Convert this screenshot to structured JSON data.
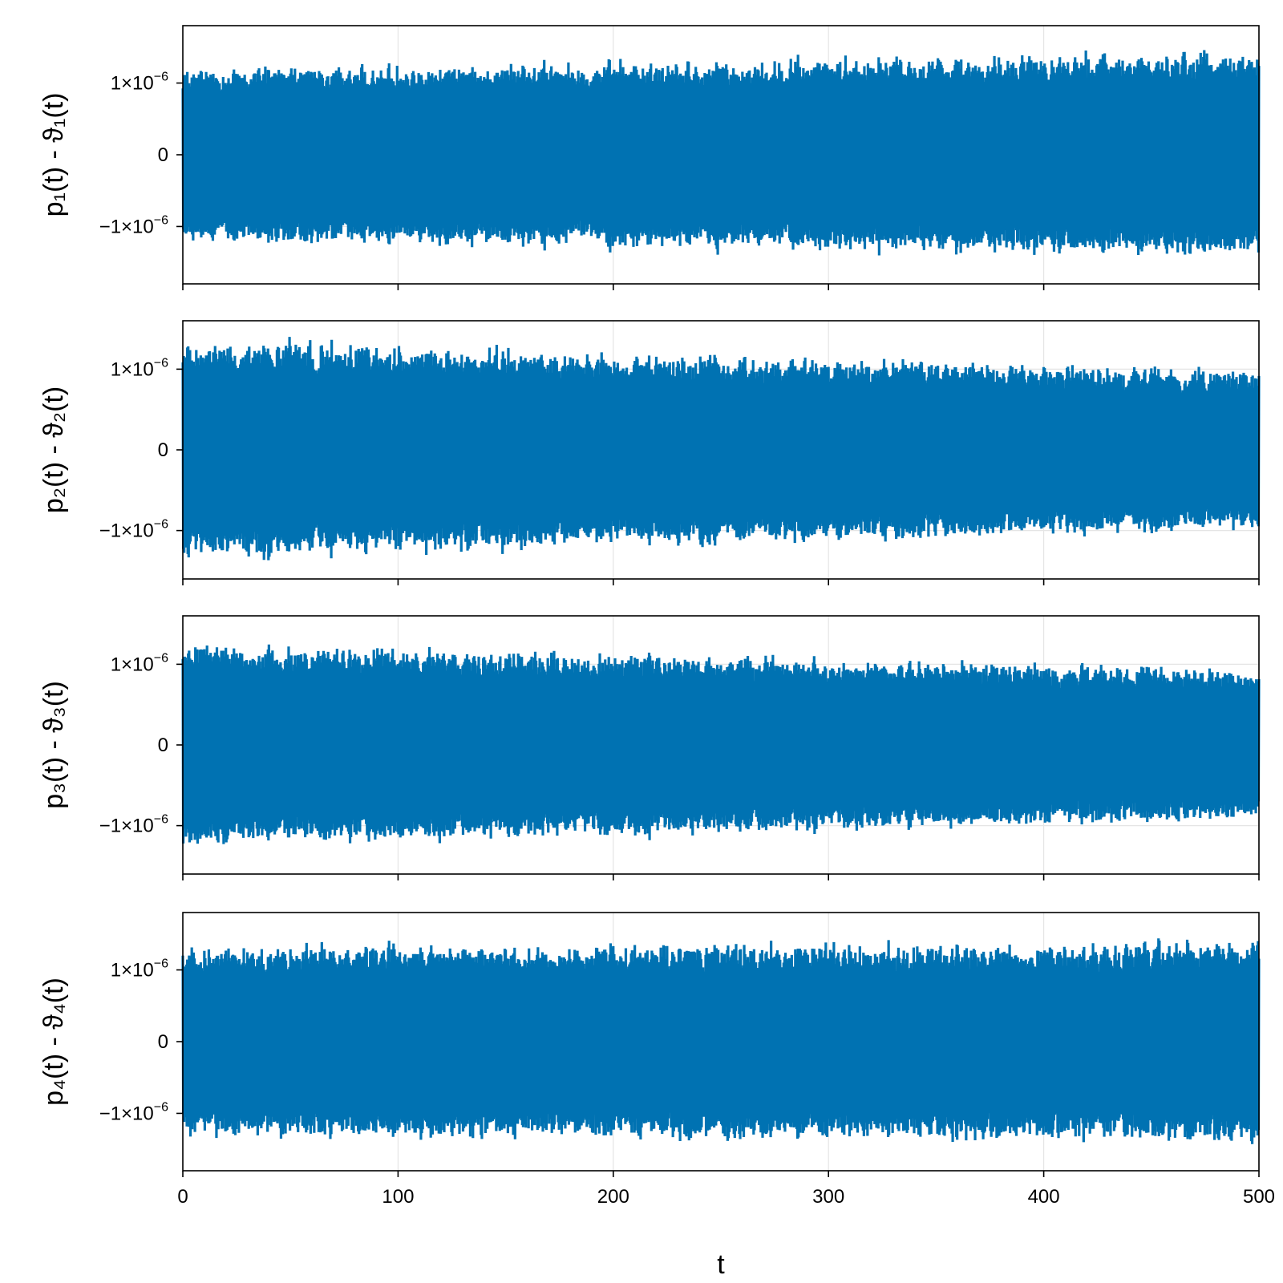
{
  "chart_data": [
    {
      "type": "line",
      "ylabel": "p₁(t) - ϑ₁(t)",
      "xlim": [
        0,
        500
      ],
      "ylim": [
        -1.8e-06,
        1.8e-06
      ],
      "x_ticks": [
        "0",
        "100",
        "200",
        "300",
        "400",
        "500"
      ],
      "y_ticks": [
        {
          "value": 1e-06,
          "base": "1×10",
          "exp": "−6"
        },
        {
          "value": 0,
          "base": "0",
          "exp": ""
        },
        {
          "value": -1e-06,
          "base": "−1×10",
          "exp": "−6"
        }
      ],
      "grid": true,
      "series": [
        {
          "color": "#0072b2",
          "amplitude": 1.5e-06,
          "amplitude_start": 1.35e-06,
          "amplitude_end": 1.6e-06
        }
      ]
    },
    {
      "type": "line",
      "ylabel": "p₂(t) - ϑ₂(t)",
      "xlim": [
        0,
        500
      ],
      "ylim": [
        -1.6e-06,
        1.6e-06
      ],
      "x_ticks": [
        "0",
        "100",
        "200",
        "300",
        "400",
        "500"
      ],
      "y_ticks": [
        {
          "value": 1e-06,
          "base": "1×10",
          "exp": "−6"
        },
        {
          "value": 0,
          "base": "0",
          "exp": ""
        },
        {
          "value": -1e-06,
          "base": "−1×10",
          "exp": "−6"
        }
      ],
      "grid": true,
      "series": [
        {
          "color": "#0072b2",
          "amplitude": 1.3e-06,
          "amplitude_start": 1.5e-06,
          "amplitude_end": 1.1e-06
        }
      ]
    },
    {
      "type": "line",
      "ylabel": "p₃(t) - ϑ₃(t)",
      "xlim": [
        0,
        500
      ],
      "ylim": [
        -1.6e-06,
        1.6e-06
      ],
      "x_ticks": [
        "0",
        "100",
        "200",
        "300",
        "400",
        "500"
      ],
      "y_ticks": [
        {
          "value": 1e-06,
          "base": "1×10",
          "exp": "−6"
        },
        {
          "value": 0,
          "base": "0",
          "exp": ""
        },
        {
          "value": -1e-06,
          "base": "−1×10",
          "exp": "−6"
        }
      ],
      "grid": true,
      "series": [
        {
          "color": "#0072b2",
          "amplitude": 1.2e-06,
          "amplitude_start": 1.4e-06,
          "amplitude_end": 1.05e-06
        }
      ]
    },
    {
      "type": "line",
      "ylabel": "p₄(t) - ϑ₄(t)",
      "xlabel": "t",
      "xlim": [
        0,
        500
      ],
      "ylim": [
        -1.8e-06,
        1.8e-06
      ],
      "x_ticks": [
        "0",
        "100",
        "200",
        "300",
        "400",
        "500"
      ],
      "y_ticks": [
        {
          "value": 1e-06,
          "base": "1×10",
          "exp": "−6"
        },
        {
          "value": 0,
          "base": "0",
          "exp": ""
        },
        {
          "value": -1e-06,
          "base": "−1×10",
          "exp": "−6"
        }
      ],
      "grid": true,
      "series": [
        {
          "color": "#0072b2",
          "amplitude": 1.5e-06,
          "amplitude_start": 1.5e-06,
          "amplitude_end": 1.55e-06
        }
      ]
    }
  ]
}
